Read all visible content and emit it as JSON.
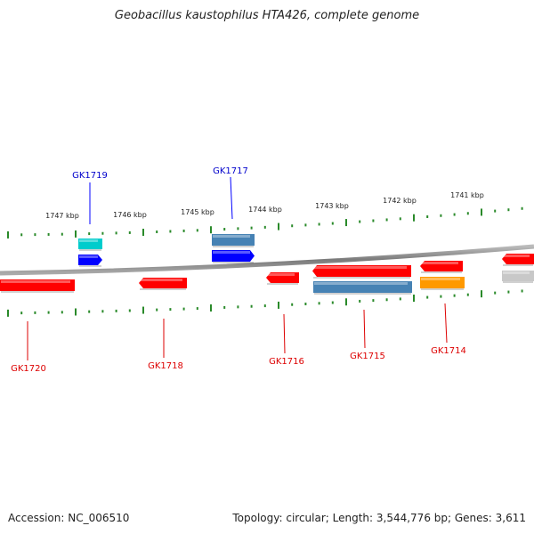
{
  "title": "Geobacillus kaustophilus HTA426, complete genome",
  "footer": {
    "accession": "Accession: NC_006510",
    "stats": "Topology: circular; Length: 3,544,776 bp; Genes: 3,611"
  },
  "colors": {
    "backbone": "#888888",
    "tick": "#2a8a2a",
    "forward_label": "#0000cc",
    "reverse_label": "#dd0000",
    "red_gene": "#ff0000",
    "blue_gene": "#0000ff",
    "steel_gene": "#4682b4",
    "cyan_gene": "#00cccc",
    "orange_gene": "#ff9900",
    "grey_gene": "#c8c8c8"
  },
  "kbp_labels": [
    "1747 kbp",
    "1746 kbp",
    "1745 kbp",
    "1744 kbp",
    "1743 kbp",
    "1742 kbp",
    "1741 kbp"
  ],
  "gene_labels": {
    "GK1719": "GK1719",
    "GK1717": "GK1717",
    "GK1720": "GK1720",
    "GK1718": "GK1718",
    "GK1716": "GK1716",
    "GK1715": "GK1715",
    "GK1714": "GK1714"
  }
}
